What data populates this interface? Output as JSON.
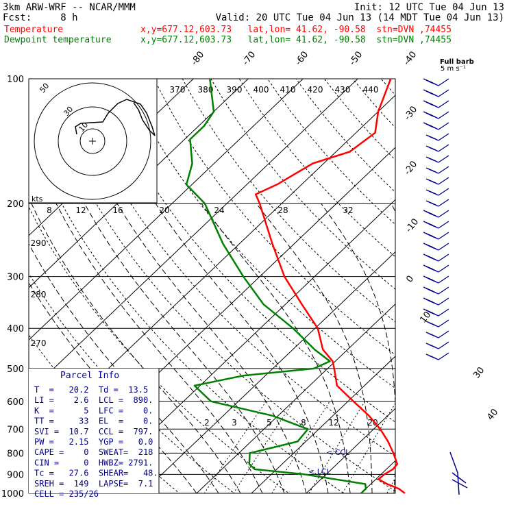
{
  "header": {
    "model": "3km ARW-WRF -- NCAR/MMM",
    "init": "Init: 12 UTC Tue 04 Jun 13",
    "fcst": "Fcst:     8 h",
    "valid": "Valid: 20 UTC Tue 04 Jun 13 (14 MDT Tue 04 Jun 13)",
    "temp_line": {
      "label": "Temperature",
      "info": "x,y=677.12,603.73   lat,lon= 41.62, -90.58  stn=DVN ,74455"
    },
    "dew_line": {
      "label": "Dewpoint temperature",
      "info": "x,y=677.12,603.73   lat,lon= 41.62, -90.58  stn=DVN ,74455"
    }
  },
  "colors": {
    "temperature": "#ff0000",
    "dewpoint": "#008000",
    "parcel_box": "#00008b",
    "barbs": "#00008b"
  },
  "chart_data": {
    "type": "skew-t log-p",
    "pressure_labels": [
      "100",
      "200",
      "300",
      "400",
      "500",
      "600",
      "700",
      "800",
      "900",
      "1000"
    ],
    "temp_labels": [
      "-80",
      "-70",
      "-60",
      "-50",
      "-40",
      "-30",
      "-20",
      "-10",
      "0",
      "10",
      "30",
      "40"
    ],
    "theta_labels": [
      "370",
      "380",
      "390",
      "400",
      "410",
      "420",
      "430",
      "440",
      "290",
      "280",
      "270"
    ],
    "mixing_ratio_labels": [
      "2",
      "3",
      "5",
      "8",
      "12",
      "20"
    ],
    "hodo_speed_labels": [
      "8",
      "12",
      "16",
      "20",
      "24",
      "28",
      "32"
    ],
    "hodo_ring_labels": [
      "50",
      "30",
      "10"
    ],
    "hodo_units": "kts",
    "barb_title": "Full barb",
    "barb_units": "5 m s⁻¹",
    "ccl_label": "CCL",
    "lcl_label": "LCL",
    "temperature": [
      [
        1000,
        28.0
      ],
      [
        975,
        26.0
      ],
      [
        950,
        23.0
      ],
      [
        925,
        20.5
      ],
      [
        900,
        20.6
      ],
      [
        875,
        21.2
      ],
      [
        850,
        21.0
      ],
      [
        800,
        18.2
      ],
      [
        750,
        15.0
      ],
      [
        700,
        11.2
      ],
      [
        650,
        6.6
      ],
      [
        600,
        1.0
      ],
      [
        550,
        -5.0
      ],
      [
        500,
        -8.8
      ],
      [
        480,
        -10.5
      ],
      [
        450,
        -14.5
      ],
      [
        400,
        -19.5
      ],
      [
        350,
        -27.0
      ],
      [
        300,
        -35.5
      ],
      [
        250,
        -44.0
      ],
      [
        200,
        -54.0
      ],
      [
        190,
        -56.5
      ],
      [
        180,
        -54.5
      ],
      [
        160,
        -52.0
      ],
      [
        150,
        -47.5
      ],
      [
        135,
        -46.5
      ],
      [
        120,
        -50.0
      ],
      [
        100,
        -54.0
      ]
    ],
    "dewpoint": [
      [
        1000,
        20.0
      ],
      [
        975,
        20.0
      ],
      [
        950,
        19.0
      ],
      [
        900,
        6.0
      ],
      [
        875,
        -4.0
      ],
      [
        850,
        -6.0
      ],
      [
        800,
        -8.0
      ],
      [
        750,
        -1.5
      ],
      [
        700,
        -2.0
      ],
      [
        650,
        -11.0
      ],
      [
        600,
        -25.0
      ],
      [
        550,
        -31.0
      ],
      [
        520,
        -24.0
      ],
      [
        500,
        -12.5
      ],
      [
        480,
        -11.0
      ],
      [
        450,
        -16.0
      ],
      [
        400,
        -24.0
      ],
      [
        350,
        -34.0
      ],
      [
        300,
        -43.0
      ],
      [
        250,
        -53.0
      ],
      [
        200,
        -64.0
      ],
      [
        180,
        -71.0
      ],
      [
        160,
        -74.0
      ],
      [
        140,
        -79.0
      ],
      [
        130,
        -79.0
      ],
      [
        120,
        -80.0
      ],
      [
        100,
        -87.0
      ]
    ]
  },
  "parcel_info": {
    "title": "Parcel Info",
    "rows": [
      "T  =   20.2  Td =  13.5",
      "LI =    2.6  LCL =  890.",
      "K  =      5  LFC =    0.",
      "TT =     33  EL  =    0.",
      "SVI =  10.7  CCL =  797.",
      "PW =   2.15  YGP =   0.0",
      "CAPE =    0  SWEAT=  218",
      "CIN =     0  HWBZ= 2791.",
      "Tc =   27.6  SHEAR=   48.",
      "SREH =  149  LAPSE=  7.1",
      "CELL = 235/26"
    ]
  }
}
